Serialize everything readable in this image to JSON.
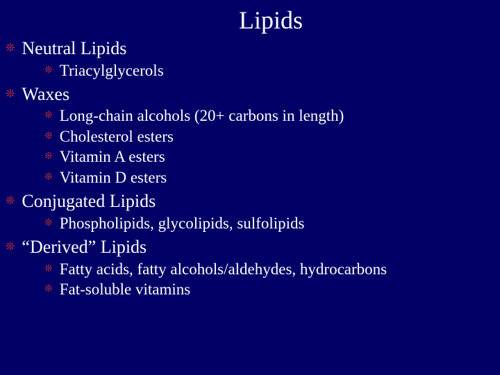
{
  "slide": {
    "title": "Lipids",
    "background_color": "#000066",
    "text_color": "#ffffff",
    "bullet_color": "#cc3333",
    "title_fontsize": 36,
    "level1_fontsize": 26,
    "level2_fontsize": 23,
    "font_family": "Times New Roman",
    "sections": [
      {
        "heading": "Neutral Lipids",
        "items": [
          "Triacylglycerols"
        ]
      },
      {
        "heading": "Waxes",
        "items": [
          "Long-chain alcohols (20+ carbons in length)",
          "Cholesterol esters",
          "Vitamin A esters",
          "Vitamin D esters"
        ]
      },
      {
        "heading": "Conjugated Lipids",
        "items": [
          "Phospholipids, glycolipids, sulfolipids"
        ]
      },
      {
        "heading": "“Derived” Lipids",
        "items": [
          "Fatty acids, fatty alcohols/aldehydes, hydrocarbons",
          "Fat-soluble vitamins"
        ]
      }
    ]
  }
}
